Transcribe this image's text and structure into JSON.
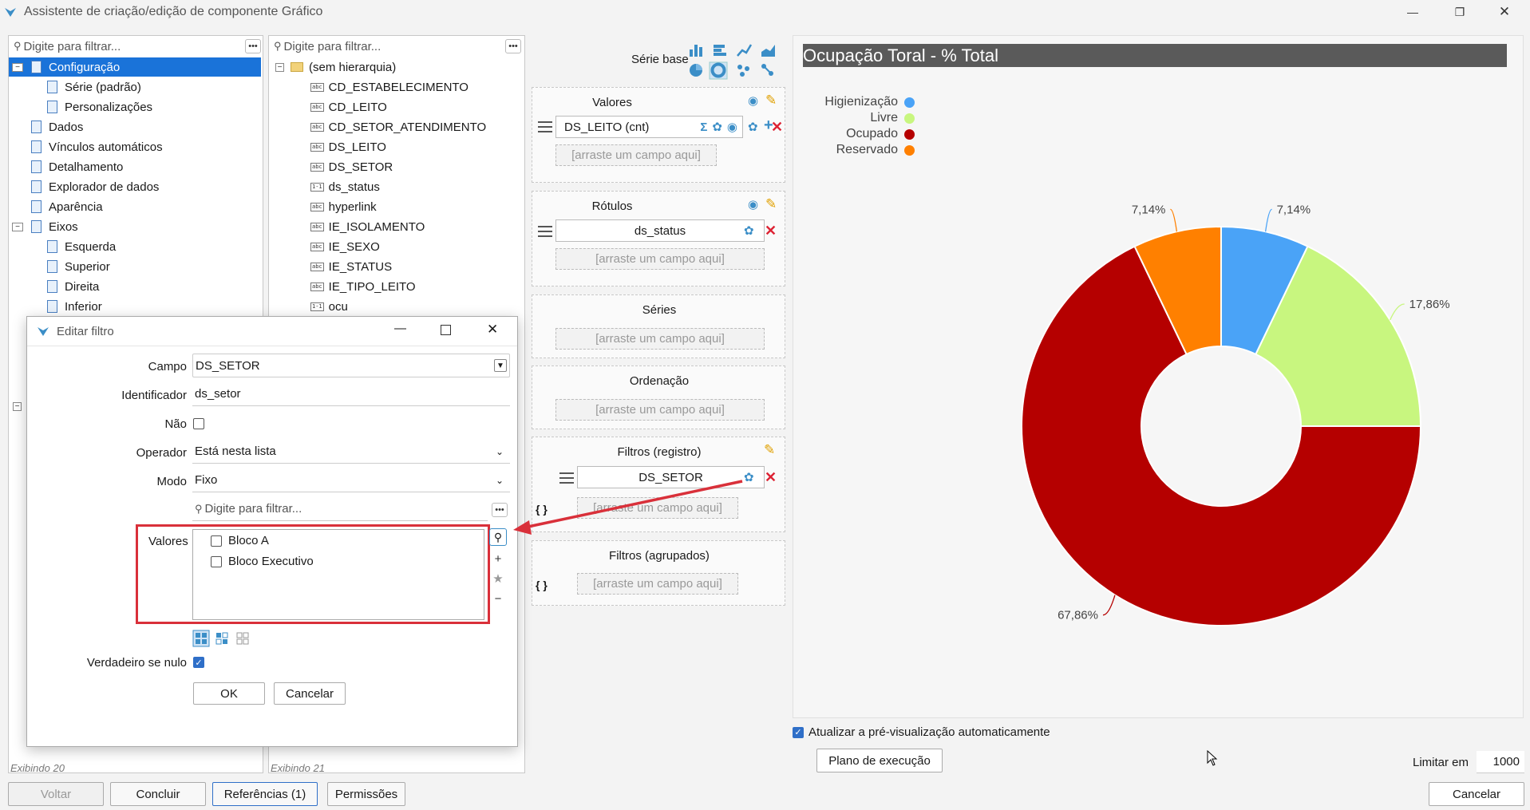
{
  "window": {
    "title": "Assistente de criação/edição de componente Gráfico"
  },
  "left_tree": {
    "search_placeholder": "Digite para filtrar...",
    "items": [
      {
        "label": "Configuração",
        "selected": true,
        "toggle": "−"
      },
      {
        "label": "Série (padrão)"
      },
      {
        "label": "Personalizações"
      },
      {
        "label": "Dados"
      },
      {
        "label": "Vínculos automáticos"
      },
      {
        "label": "Detalhamento"
      },
      {
        "label": "Explorador de dados"
      },
      {
        "label": "Aparência"
      },
      {
        "label": "Eixos",
        "toggle": "−"
      },
      {
        "label": "Esquerda"
      },
      {
        "label": "Superior"
      },
      {
        "label": "Direita"
      },
      {
        "label": "Inferior"
      }
    ],
    "status": "Exibindo 20"
  },
  "fields_tree": {
    "search_placeholder": "Digite para filtrar...",
    "root": "(sem hierarquia)",
    "fields": [
      {
        "label": "CD_ESTABELECIMENTO",
        "type": "abc"
      },
      {
        "label": "CD_LEITO",
        "type": "abc"
      },
      {
        "label": "CD_SETOR_ATENDIMENTO",
        "type": "abc"
      },
      {
        "label": "DS_LEITO",
        "type": "abc"
      },
      {
        "label": "DS_SETOR",
        "type": "abc"
      },
      {
        "label": "ds_status",
        "type": "1-1"
      },
      {
        "label": "hyperlink",
        "type": "abc"
      },
      {
        "label": "IE_ISOLAMENTO",
        "type": "abc"
      },
      {
        "label": "IE_SEXO",
        "type": "abc"
      },
      {
        "label": "IE_STATUS",
        "type": "abc"
      },
      {
        "label": "IE_TIPO_LEITO",
        "type": "abc"
      },
      {
        "label": "ocu",
        "type": "1-1"
      }
    ],
    "status": "Exibindo 21"
  },
  "config": {
    "serie_base_label": "Série base",
    "drop_placeholder": "[arraste um campo aqui]",
    "valores": {
      "title": "Valores",
      "field": "DS_LEITO (cnt)"
    },
    "rotulos": {
      "title": "Rótulos",
      "field": "ds_status"
    },
    "series": {
      "title": "Séries"
    },
    "ordenacao": {
      "title": "Ordenação"
    },
    "filtros_registro": {
      "title": "Filtros (registro)",
      "field": "DS_SETOR"
    },
    "filtros_agrupados": {
      "title": "Filtros (agrupados)"
    },
    "braces": "{ }"
  },
  "dialog": {
    "title": "Editar filtro",
    "campo_label": "Campo",
    "campo_value": "DS_SETOR",
    "identificador_label": "Identificador",
    "identificador_value": "ds_setor",
    "nao_label": "Não",
    "operador_label": "Operador",
    "operador_value": "Está nesta lista",
    "modo_label": "Modo",
    "modo_value": "Fixo",
    "filter_placeholder": "Digite para filtrar...",
    "valores_label": "Valores",
    "valores_items": [
      "Bloco A",
      "Bloco Executivo"
    ],
    "verdadeiro_label": "Verdadeiro se nulo",
    "ok_label": "OK",
    "cancel_label": "Cancelar"
  },
  "chart_data": {
    "type": "pie",
    "title": "Ocupação Toral - % Total",
    "donut": true,
    "categories": [
      "Higienização",
      "Livre",
      "Ocupado",
      "Reservado"
    ],
    "values": [
      7.14,
      17.86,
      67.86,
      7.14
    ],
    "labels": [
      "7,14%",
      "17,86%",
      "67,86%",
      "7,14%"
    ],
    "colors": [
      "#4aa3f7",
      "#c8f67f",
      "#b50000",
      "#ff8000"
    ],
    "legend_position": "top-left"
  },
  "preview": {
    "auto_update_label": "Atualizar a pré-visualização automaticamente",
    "plano_label": "Plano de execução",
    "limitar_label": "Limitar em",
    "limitar_value": "1000"
  },
  "footer": {
    "voltar": "Voltar",
    "concluir": "Concluir",
    "referencias": "Referências (1)",
    "permissoes": "Permissões",
    "cancelar": "Cancelar"
  }
}
